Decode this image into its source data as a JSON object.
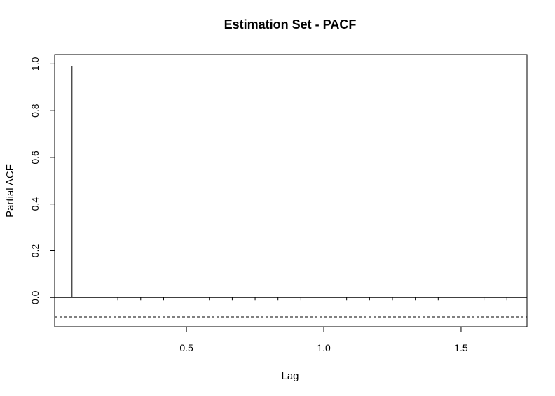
{
  "chart_data": {
    "type": "bar",
    "title": "Estimation Set - PACF",
    "xlabel": "Lag",
    "ylabel": "Partial ACF",
    "xlim": [
      0.02,
      1.74
    ],
    "ylim": [
      -0.125,
      1.04
    ],
    "x_ticks": [
      0.5,
      1.0,
      1.5
    ],
    "x_tick_labels": [
      "0.5",
      "1.0",
      "1.5"
    ],
    "y_ticks": [
      0.0,
      0.2,
      0.4,
      0.6,
      0.8,
      1.0
    ],
    "y_tick_labels": [
      "0.0",
      "0.2",
      "0.4",
      "0.6",
      "0.8",
      "1.0"
    ],
    "minor_x_ticks": [
      0.1667,
      0.25,
      0.3333,
      0.4167,
      0.5833,
      0.6667,
      0.75,
      0.8333,
      0.9167,
      1.0833,
      1.1667,
      1.25,
      1.3333,
      1.4167,
      1.5833,
      1.6667
    ],
    "lags": [
      0.0833
    ],
    "values": [
      0.99
    ],
    "confidence_bound": 0.083,
    "grid": false,
    "colors": {
      "spike": "#000000",
      "bound_line": "#000000",
      "zero_line": "#000000"
    }
  }
}
